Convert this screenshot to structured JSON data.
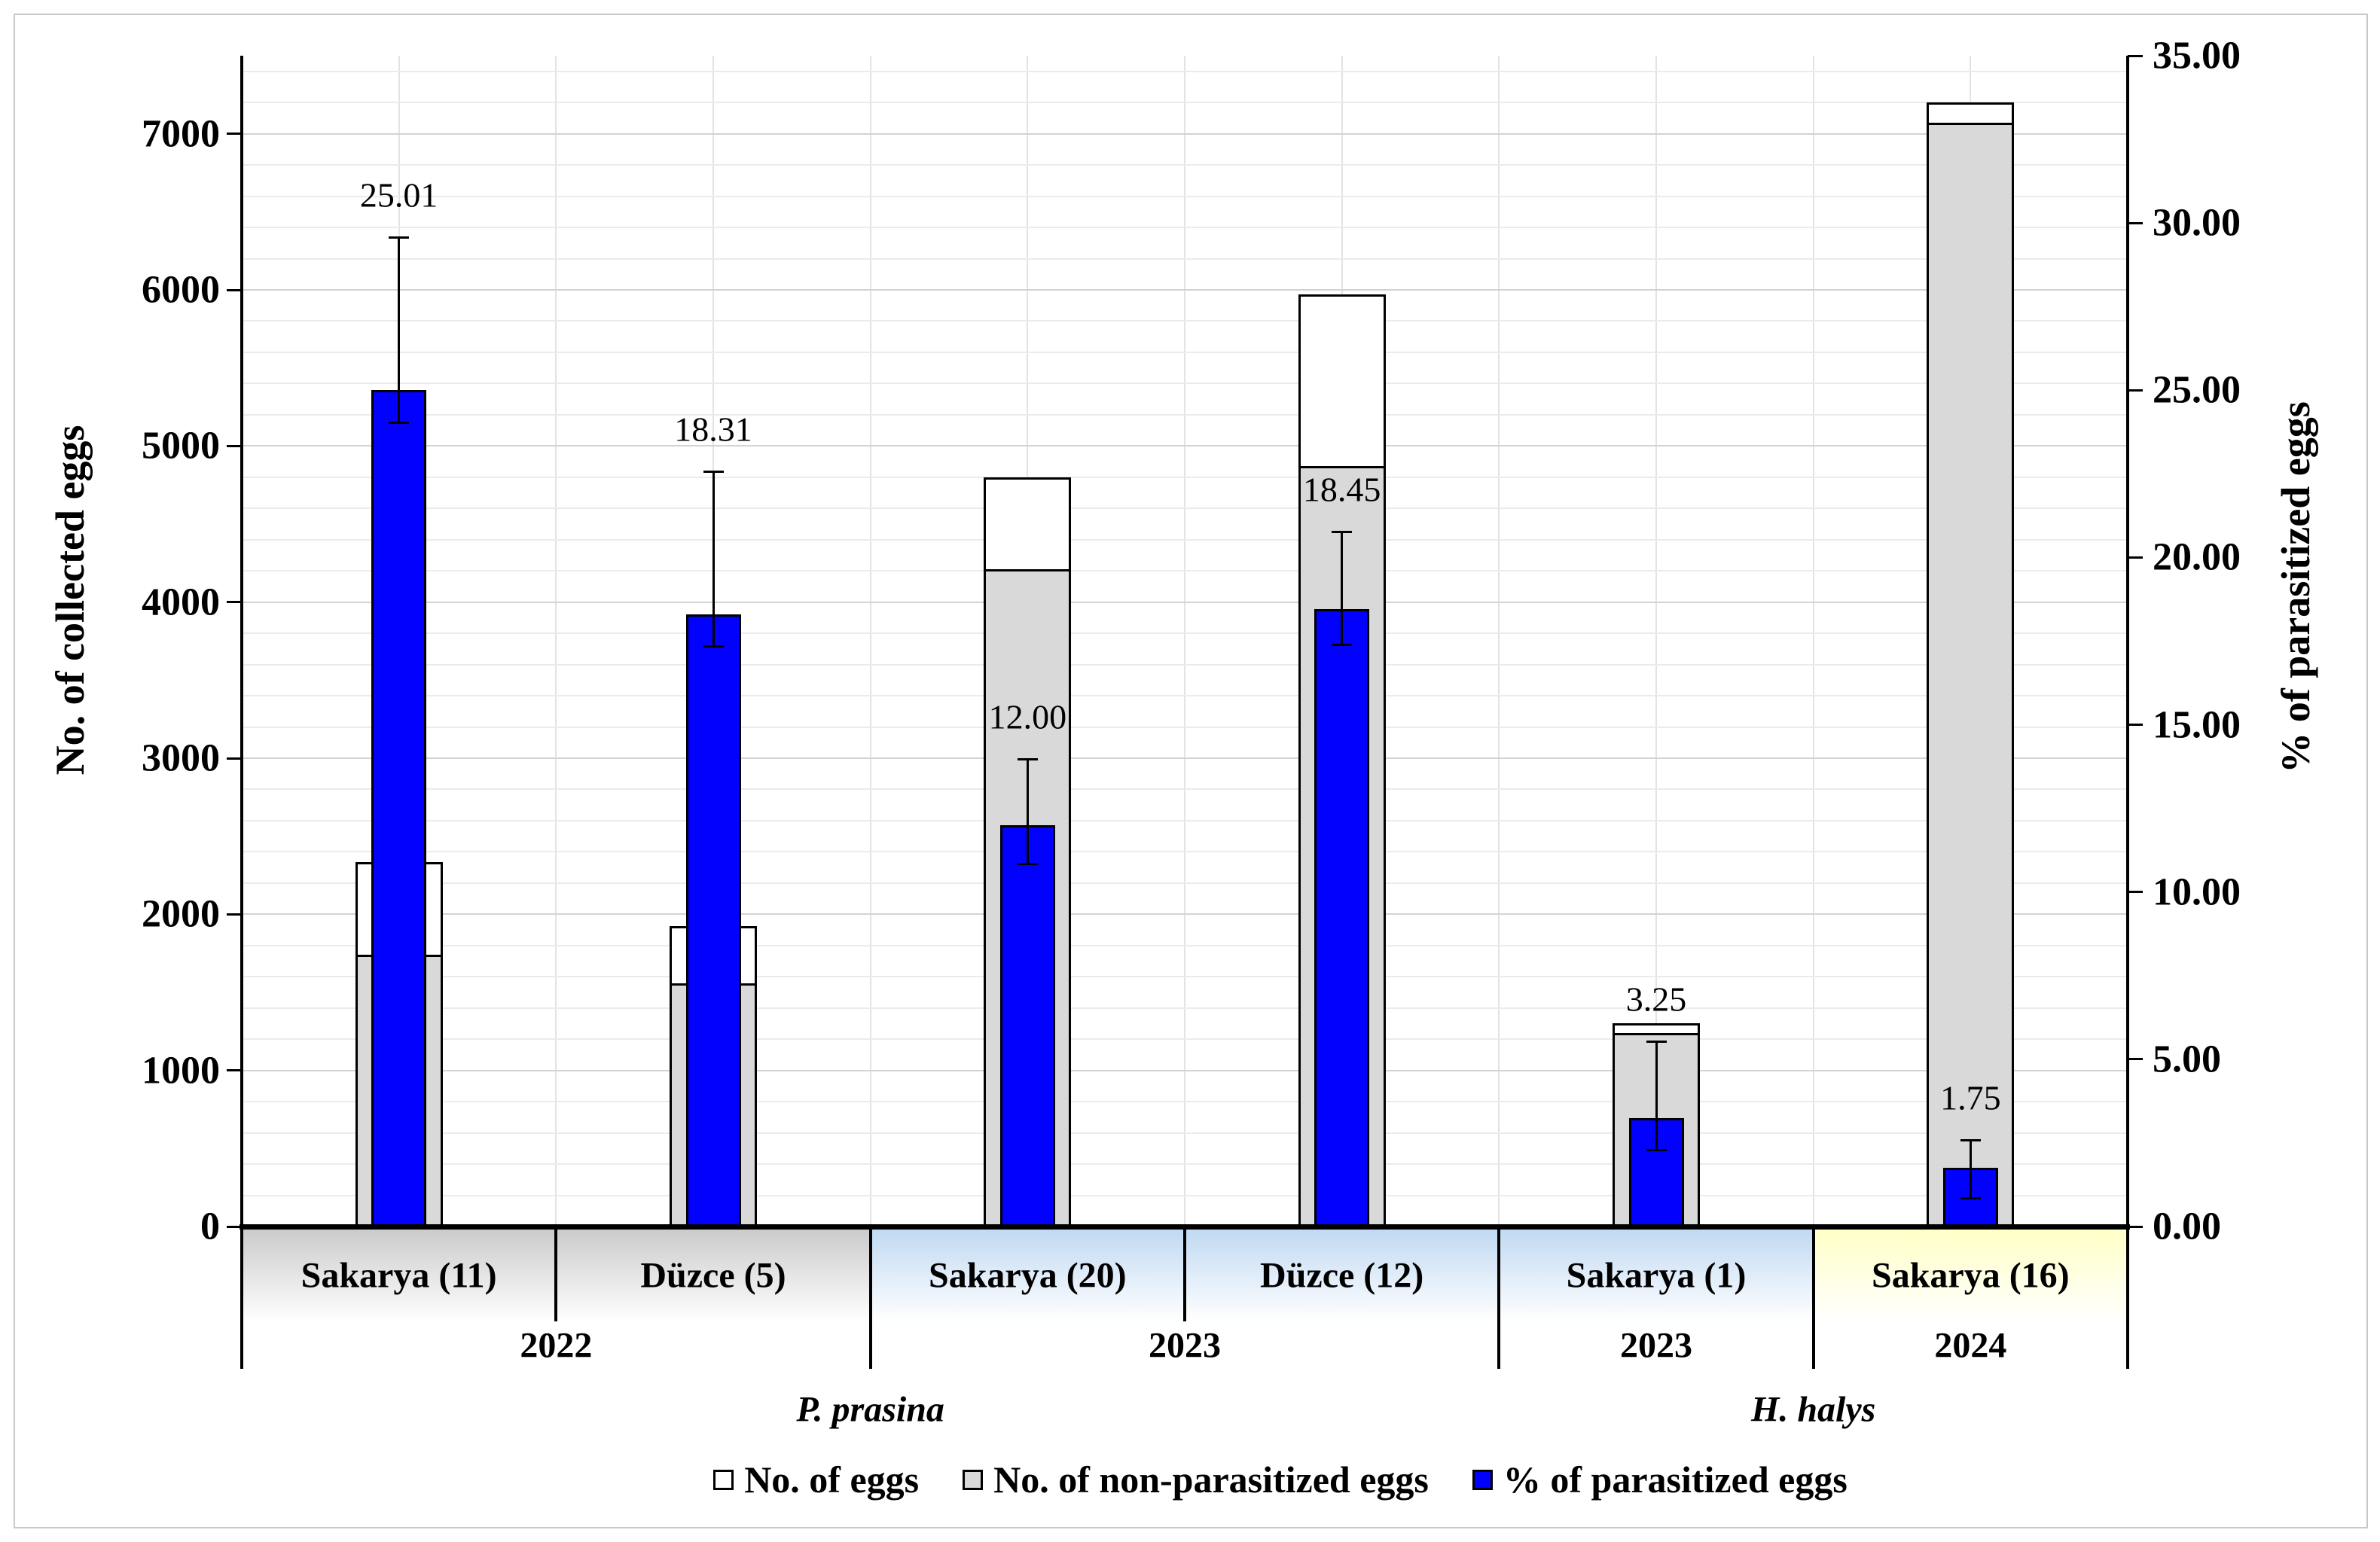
{
  "figure": {
    "left_axis_title": "No. of collected eggs",
    "right_axis_title": "% of parasitized eggs"
  },
  "legend": {
    "items": [
      {
        "label": "No. of eggs",
        "color": "#FFFFFF"
      },
      {
        "label": "No. of non-parasitized eggs",
        "color": "#D9D9D9"
      },
      {
        "label": "% of parasitized eggs",
        "color": "#0101FD"
      }
    ]
  },
  "chart_data": {
    "type": "bar",
    "title": "",
    "categories": [
      "Sakarya (11)",
      "Düzce (5)",
      "Sakarya (20)",
      "Düzce (12)",
      "Sakarya (1)",
      "Sakarya (16)"
    ],
    "series": [
      {
        "name": "No. of eggs",
        "axis": "left",
        "values": [
          2335,
          1925,
          4800,
          5970,
          1300,
          7200
        ]
      },
      {
        "name": "No. of non-parasitized eggs",
        "axis": "left",
        "values": [
          1740,
          1560,
          4210,
          4870,
          1240,
          7070
        ]
      },
      {
        "name": "% of parasitized eggs",
        "axis": "right",
        "values": [
          25.01,
          18.31,
          12.0,
          18.45,
          3.25,
          1.75
        ],
        "labels": [
          "25.01",
          "18.31",
          "12.00",
          "18.45",
          "3.25",
          "1.75"
        ],
        "error_upper_abs": [
          29.6,
          22.6,
          14.0,
          20.8,
          5.55,
          2.6
        ],
        "error_lower_abs": [
          24.0,
          17.3,
          10.8,
          17.35,
          2.25,
          0.8
        ]
      }
    ],
    "left_axis": {
      "label": "No. of collected eggs",
      "min": 0,
      "max": 7500,
      "tick_step": 1000,
      "minor_grid_step": 200
    },
    "right_axis": {
      "label": "% of parasitized eggs",
      "min": 0,
      "max": 35,
      "tick_step": 5
    },
    "year_groups": [
      {
        "label": "2022",
        "from": 0,
        "to": 1
      },
      {
        "label": "2023",
        "from": 2,
        "to": 3
      },
      {
        "label": "2023",
        "from": 4,
        "to": 4
      },
      {
        "label": "2024",
        "from": 5,
        "to": 5
      }
    ],
    "species_groups": [
      {
        "label": "P. prasina",
        "from": 0,
        "to": 3
      },
      {
        "label": "H. halys",
        "from": 4,
        "to": 5
      }
    ],
    "band_groups": [
      {
        "from": 0,
        "to": 1,
        "color": "#C9C9C9"
      },
      {
        "from": 2,
        "to": 4,
        "color": "#BFD8F2"
      },
      {
        "from": 5,
        "to": 5,
        "color": "#FFFFC5"
      }
    ],
    "colors": {
      "bar_total_fill": "#FFFFFF",
      "bar_non_parasitized_fill": "#D9D9D9",
      "bar_percent_fill": "#0101FD",
      "bar_outline": "#000000",
      "grid_minor": "#EBEBEB",
      "grid_major": "#D3D3D3",
      "grid_vertical": "#E3E3E3",
      "figure_border": "#C8C8C8"
    },
    "grid": true,
    "legend_position": "bottom"
  }
}
